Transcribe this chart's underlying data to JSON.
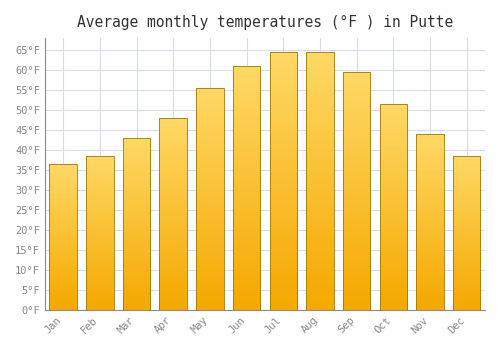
{
  "title": "Average monthly temperatures (°F ) in Putte",
  "months": [
    "Jan",
    "Feb",
    "Mar",
    "Apr",
    "May",
    "Jun",
    "Jul",
    "Aug",
    "Sep",
    "Oct",
    "Nov",
    "Dec"
  ],
  "values": [
    36.5,
    38.5,
    43,
    48,
    55.5,
    61,
    64.5,
    64.5,
    59.5,
    51.5,
    44,
    38.5
  ],
  "bar_color_top": "#F5A800",
  "bar_color_bottom": "#FFD966",
  "bar_edge_color": "#A07800",
  "ylim": [
    0,
    68
  ],
  "yticks": [
    0,
    5,
    10,
    15,
    20,
    25,
    30,
    35,
    40,
    45,
    50,
    55,
    60,
    65
  ],
  "background_color": "#FFFFFF",
  "grid_color": "#D8DCE8",
  "title_fontsize": 10.5,
  "tick_fontsize": 7.5,
  "font_family": "monospace"
}
